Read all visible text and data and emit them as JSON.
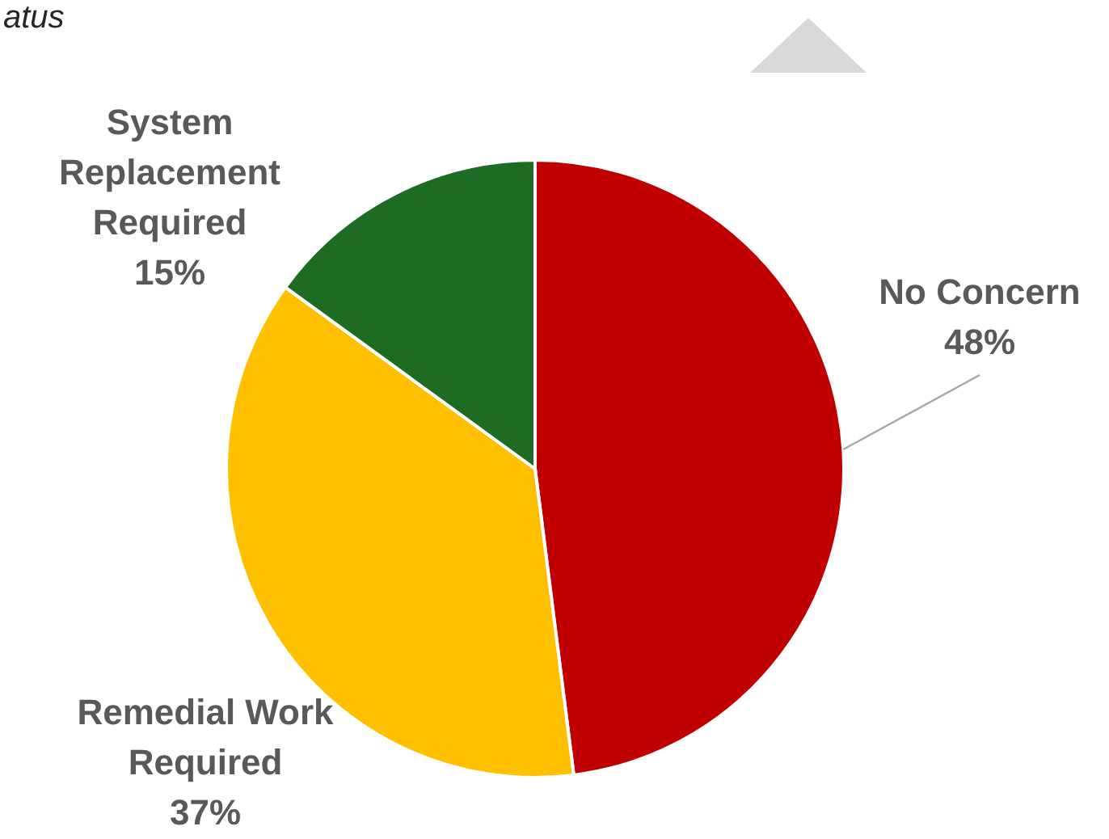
{
  "chart_data": {
    "type": "pie",
    "title": "atus",
    "categories": [
      "No Concern",
      "Remedial Work Required",
      "System Replacement Required"
    ],
    "values": [
      48,
      37,
      15
    ],
    "colors": [
      "#c00000",
      "#ffc000",
      "#1e6b24"
    ],
    "value_labels": [
      "48%",
      "37%",
      "15%"
    ],
    "legend": false
  }
}
